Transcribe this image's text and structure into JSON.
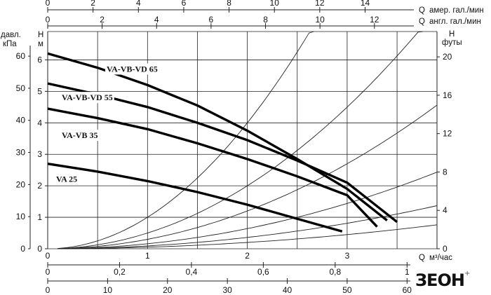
{
  "chart_data": {
    "type": "line",
    "title": "",
    "axes": {
      "head_m": {
        "label": "H м",
        "label_top": "H",
        "label_bottom": "м",
        "ticks": [
          0,
          1,
          2,
          3,
          4,
          5,
          6
        ],
        "range": [
          0,
          6.9
        ]
      },
      "pressure_kpa": {
        "label": "давл. кПа",
        "label_top": "давл.",
        "label_bottom": "кПа",
        "ticks": [
          0,
          10,
          20,
          30,
          40,
          50,
          60
        ]
      },
      "head_ft": {
        "label": "H футы",
        "label_top": "H",
        "label_bottom": "футы",
        "ticks": [
          0,
          4,
          8,
          12,
          16,
          20
        ]
      },
      "flow_m3h": {
        "label": "Q м³/час",
        "label_prefix": "Q",
        "label_unit": "м³/час",
        "ticks": [
          0,
          1,
          2,
          3
        ],
        "range": [
          0,
          3.9
        ]
      },
      "flow_ls": {
        "ticks": [
          "0",
          "0,2",
          "0,4",
          "0,6",
          "0,8",
          "1"
        ]
      },
      "flow_lmin": {
        "ticks": [
          0,
          10,
          20,
          30,
          40,
          50,
          60
        ]
      },
      "flow_us_gpm": {
        "label": "Q амер. гал./мин",
        "label_prefix": "Q",
        "label_unit": "амер. гал./мин",
        "ticks": [
          0,
          2,
          4,
          6,
          8,
          10,
          12,
          14
        ]
      },
      "flow_uk_gpm": {
        "label": "Q англ. гал./мин",
        "label_prefix": "Q",
        "label_unit": "англ. гал./мин",
        "ticks": [
          0,
          2,
          4,
          6,
          8,
          10,
          12
        ]
      }
    },
    "series": [
      {
        "name": "VA-VB-VD 65",
        "x": [
          0,
          0.5,
          1.0,
          1.5,
          2.0,
          2.5,
          3.0,
          3.4
        ],
        "y": [
          6.2,
          5.75,
          5.2,
          4.55,
          3.75,
          2.85,
          1.9,
          0.9
        ]
      },
      {
        "name": "VA-VB-VD 55",
        "x": [
          0,
          0.5,
          1.0,
          1.5,
          2.0,
          2.5,
          3.0,
          3.5
        ],
        "y": [
          5.25,
          4.9,
          4.5,
          4.0,
          3.45,
          2.8,
          2.1,
          0.85
        ]
      },
      {
        "name": "VA-VB 35",
        "x": [
          0,
          0.5,
          1.0,
          1.5,
          2.0,
          2.5,
          3.0,
          3.3
        ],
        "y": [
          4.45,
          4.15,
          3.8,
          3.35,
          2.85,
          2.3,
          1.7,
          0.7
        ]
      },
      {
        "name": "VA 25",
        "x": [
          0,
          0.5,
          1.0,
          1.5,
          2.0,
          2.5,
          2.95
        ],
        "y": [
          2.7,
          2.45,
          2.15,
          1.8,
          1.4,
          0.95,
          0.55
        ]
      }
    ],
    "system_curves": [
      1.0,
      0.5,
      0.3,
      0.16,
      0.09,
      0.05
    ],
    "grid": true,
    "legend": "labels on curves"
  },
  "brand": {
    "logo_text": "ЗЕОН",
    "logo_suffix": "+"
  }
}
